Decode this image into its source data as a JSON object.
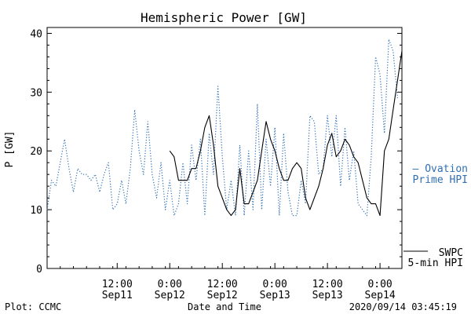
{
  "chart_data": {
    "type": "line",
    "title": "Hemispheric Power [GW]",
    "xlabel": "Date and Time",
    "ylabel": "P [GW]",
    "ylim": [
      0,
      41
    ],
    "yticks": [
      0,
      10,
      20,
      30,
      40
    ],
    "xlim": [
      "2020-09-10 20:00",
      "2020-09-14 05:00"
    ],
    "xticks": [
      {
        "t": "2020-09-11 12:00",
        "time": "12:00",
        "date": "Sep11"
      },
      {
        "t": "2020-09-12 00:00",
        "time": "0:00",
        "date": "Sep12"
      },
      {
        "t": "2020-09-12 12:00",
        "time": "12:00",
        "date": "Sep12"
      },
      {
        "t": "2020-09-13 00:00",
        "time": "0:00",
        "date": "Sep13"
      },
      {
        "t": "2020-09-13 12:00",
        "time": "12:00",
        "date": "Sep13"
      },
      {
        "t": "2020-09-14 00:00",
        "time": "0:00",
        "date": "Sep14"
      }
    ],
    "grid": false,
    "legend_position": "right",
    "series": [
      {
        "name": "Ovation Prime HPI",
        "legend_lines": [
          "— Ovation",
          "Prime HPI"
        ],
        "style": "dotted",
        "color": "#2f6fb5",
        "x": [
          "2020-09-10 20:00",
          "2020-09-10 21:00",
          "2020-09-10 22:00",
          "2020-09-10 23:00",
          "2020-09-11 00:00",
          "2020-09-11 01:00",
          "2020-09-11 02:00",
          "2020-09-11 03:00",
          "2020-09-11 04:00",
          "2020-09-11 05:00",
          "2020-09-11 06:00",
          "2020-09-11 07:00",
          "2020-09-11 08:00",
          "2020-09-11 09:00",
          "2020-09-11 10:00",
          "2020-09-11 11:00",
          "2020-09-11 12:00",
          "2020-09-11 13:00",
          "2020-09-11 14:00",
          "2020-09-11 15:00",
          "2020-09-11 16:00",
          "2020-09-11 17:00",
          "2020-09-11 18:00",
          "2020-09-11 19:00",
          "2020-09-11 20:00",
          "2020-09-11 21:00",
          "2020-09-11 22:00",
          "2020-09-11 23:00",
          "2020-09-12 00:00",
          "2020-09-12 01:00",
          "2020-09-12 02:00",
          "2020-09-12 03:00",
          "2020-09-12 04:00",
          "2020-09-12 05:00",
          "2020-09-12 06:00",
          "2020-09-12 07:00",
          "2020-09-12 08:00",
          "2020-09-12 09:00",
          "2020-09-12 10:00",
          "2020-09-12 11:00",
          "2020-09-12 12:00",
          "2020-09-12 13:00",
          "2020-09-12 14:00",
          "2020-09-12 15:00",
          "2020-09-12 16:00",
          "2020-09-12 17:00",
          "2020-09-12 18:00",
          "2020-09-12 19:00",
          "2020-09-12 20:00",
          "2020-09-12 21:00",
          "2020-09-12 22:00",
          "2020-09-12 23:00",
          "2020-09-13 00:00",
          "2020-09-13 01:00",
          "2020-09-13 02:00",
          "2020-09-13 03:00",
          "2020-09-13 04:00",
          "2020-09-13 05:00",
          "2020-09-13 06:00",
          "2020-09-13 07:00",
          "2020-09-13 08:00",
          "2020-09-13 09:00",
          "2020-09-13 10:00",
          "2020-09-13 11:00",
          "2020-09-13 12:00",
          "2020-09-13 13:00",
          "2020-09-13 14:00",
          "2020-09-13 15:00",
          "2020-09-13 16:00",
          "2020-09-13 17:00",
          "2020-09-13 18:00",
          "2020-09-13 19:00",
          "2020-09-13 20:00",
          "2020-09-13 21:00",
          "2020-09-13 22:00",
          "2020-09-13 23:00",
          "2020-09-14 00:00",
          "2020-09-14 01:00",
          "2020-09-14 02:00",
          "2020-09-14 03:00",
          "2020-09-14 04:00"
        ],
        "values": [
          10,
          15,
          14,
          18,
          22,
          17,
          13,
          17,
          16,
          16,
          15,
          16,
          13,
          16,
          18,
          10,
          11,
          15,
          11,
          17,
          27,
          20,
          16,
          25,
          16,
          12,
          18,
          10,
          15,
          9,
          11,
          18,
          11,
          21,
          15,
          22,
          9,
          23,
          16,
          31,
          19,
          10,
          15,
          9,
          21,
          9,
          20,
          10,
          28,
          10,
          22,
          14,
          24,
          9,
          23,
          13,
          9,
          9,
          15,
          11,
          26,
          25,
          16,
          17,
          26,
          19,
          26,
          14,
          24,
          15,
          20,
          11,
          10,
          9,
          19,
          36,
          33,
          23,
          39,
          37,
          29
        ]
      },
      {
        "name": "SWPC 5-min HPI",
        "legend_lines": [
          "SWPC",
          "5-min HPI"
        ],
        "style": "solid",
        "color": "#000000",
        "x": [
          "2020-09-12 00:00",
          "2020-09-12 01:00",
          "2020-09-12 02:00",
          "2020-09-12 03:00",
          "2020-09-12 04:00",
          "2020-09-12 05:00",
          "2020-09-12 06:00",
          "2020-09-12 07:00",
          "2020-09-12 08:00",
          "2020-09-12 09:00",
          "2020-09-12 10:00",
          "2020-09-12 11:00",
          "2020-09-12 12:00",
          "2020-09-12 13:00",
          "2020-09-12 14:00",
          "2020-09-12 15:00",
          "2020-09-12 16:00",
          "2020-09-12 17:00",
          "2020-09-12 18:00",
          "2020-09-12 19:00",
          "2020-09-12 20:00",
          "2020-09-12 21:00",
          "2020-09-12 22:00",
          "2020-09-12 23:00",
          "2020-09-13 00:00",
          "2020-09-13 01:00",
          "2020-09-13 02:00",
          "2020-09-13 03:00",
          "2020-09-13 04:00",
          "2020-09-13 05:00",
          "2020-09-13 06:00",
          "2020-09-13 07:00",
          "2020-09-13 08:00",
          "2020-09-13 09:00",
          "2020-09-13 10:00",
          "2020-09-13 11:00",
          "2020-09-13 12:00",
          "2020-09-13 13:00",
          "2020-09-13 14:00",
          "2020-09-13 15:00",
          "2020-09-13 16:00",
          "2020-09-13 17:00",
          "2020-09-13 18:00",
          "2020-09-13 19:00",
          "2020-09-13 20:00",
          "2020-09-13 21:00",
          "2020-09-13 22:00",
          "2020-09-13 23:00",
          "2020-09-14 00:00",
          "2020-09-14 01:00",
          "2020-09-14 02:00",
          "2020-09-14 03:00",
          "2020-09-14 04:00",
          "2020-09-14 05:00"
        ],
        "values": [
          20,
          19,
          15,
          15,
          15,
          17,
          17,
          20,
          24,
          26,
          21,
          14,
          12,
          10,
          9,
          10,
          17,
          11,
          11,
          13,
          15,
          20,
          25,
          22,
          20,
          17,
          15,
          15,
          17,
          18,
          17,
          12,
          10,
          12,
          14,
          17,
          21,
          23,
          19,
          20,
          22,
          21,
          19,
          18,
          15,
          12,
          11,
          11,
          9,
          20,
          22,
          27,
          32,
          37
        ]
      }
    ]
  },
  "footer": {
    "left": "Plot: CCMC",
    "center": "Date and Time",
    "right": "2020/09/14 03:45:19"
  }
}
